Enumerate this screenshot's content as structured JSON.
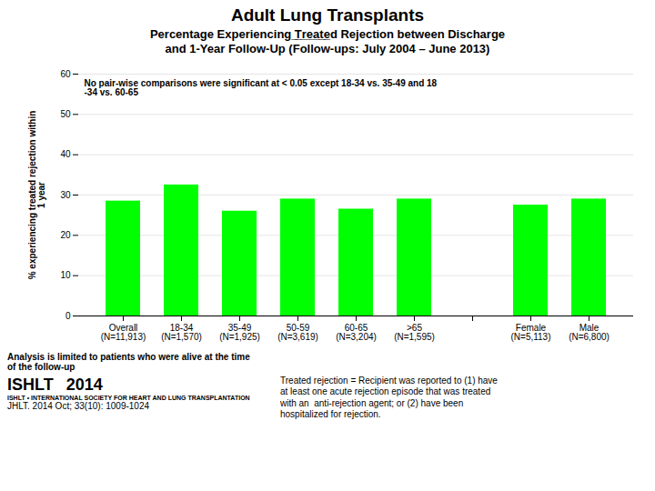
{
  "chart_data": {
    "type": "bar",
    "title": "Adult Lung Transplants",
    "subtitle": "Percentage Experiencing ̲T̲r̲e̲a̲t̲e̲d Rejection between Discharge\nand 1-Year Follow-Up (Follow-ups: July 2004 – June 2013)",
    "categories": [
      "Overall\n(N=11,913)",
      "18-34\n(N=1,570)",
      "35-49\n(N=1,925)",
      "50-59\n(N=3,619)",
      "60-65\n(N=3,204)",
      ">65\n(N=1,595)",
      null,
      "Female\n(N=5,113)",
      "Male\n(N=6,800)"
    ],
    "values": [
      28.5,
      32.5,
      26.0,
      29.0,
      26.5,
      29.0,
      null,
      27.5,
      29.0
    ],
    "color": "#00FF00",
    "ylabel": "% experiencing treated rejection within\n1 year",
    "ylim": [
      0,
      60
    ],
    "yticks": [
      0,
      10,
      20,
      30,
      40,
      50,
      60
    ],
    "grid": true,
    "annotations": [
      "No pair-wise comparisons were significant at < 0.05 except 18-34 vs. 35-49 and 18\n-34 vs. 60-65",
      "Analysis is limited to patients who were alive at the time\nof the follow-up",
      "Treated rejection = Recipient was reported to (1) have\nat least one acute rejection episode that was treated\nwith an  anti-rejection agent; or (2) have been\nhospitalized for rejection.",
      "ISHLT",
      "ISHLT • INTERNATIONAL SOCIETY FOR HEART AND LUNG TRANSPLANTATION",
      "2014",
      "JHLT. 2014 Oct; 33(10): 1009-1024"
    ]
  }
}
